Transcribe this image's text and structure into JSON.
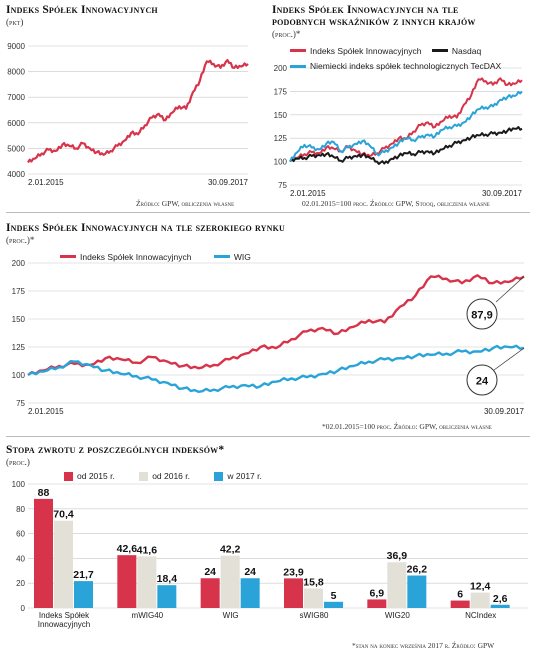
{
  "colors": {
    "isi": "#d7334a",
    "nasdaq": "#1a1a1a",
    "tecdax": "#2aa4d8",
    "wig": "#2aa4d8",
    "y2015": "#d7334a",
    "y2016": "#e3e0d8",
    "y2017": "#2aa4d8",
    "grid": "#c8c8c8"
  },
  "panel1": {
    "title": "Indeks Spółek Innowacyjnych",
    "unit": "(pkt)",
    "source": "Źródło: GPW, obliczenia własne"
  },
  "panel2": {
    "title_line1": "Indeks Spółek Innowacyjnych na tle",
    "title_line2": "podobnych wskaźników z innych krajów",
    "unit": "(proc.)*",
    "source": "02.01.2015=100 proc.  Źródło: GPW, Stooq, obliczenia własne"
  },
  "panel3": {
    "title": "Indeks Spółek Innowacyjnych  na tle szerokiego rynku",
    "unit": "(proc.)*",
    "source": "*02.01.2015=100 proc.  Źródło: GPW, obliczenia własne",
    "callout_isi": "87,9",
    "callout_wig": "24"
  },
  "panel4": {
    "title": "Stopa zwrotu z poszczególnych indeksów*",
    "unit": "(proc.)",
    "footnote": "*stan na koniec września 2017 r.  Źródło: GPW"
  },
  "chart_data": [
    {
      "type": "line",
      "title": "Indeks Spółek Innowacyjnych",
      "ylabel": "(pkt)",
      "x_start": "2.01.2015",
      "x_end": "30.09.2017",
      "ylim": [
        4000,
        9000
      ],
      "yticks": [
        4000,
        5000,
        6000,
        7000,
        8000,
        9000
      ],
      "series": [
        {
          "name": "Indeks Spółek Innowacyjnych",
          "values": [
            4450,
            4600,
            4800,
            4950,
            4900,
            5150,
            5100,
            5000,
            5200,
            5000,
            4850,
            4750,
            4900,
            5100,
            5300,
            5600,
            5550,
            5900,
            6200,
            6350,
            6100,
            6400,
            6650,
            6550,
            7200,
            7650,
            8400,
            8300,
            8150,
            8450,
            8150,
            8200,
            8300
          ]
        }
      ]
    },
    {
      "type": "line",
      "title": "Indeks Spółek Innowacyjnych na tle podobnych wskaźników z innych krajów",
      "ylabel": "(proc.)*",
      "x_start": "2.01.2015",
      "x_end": "30.09.2017",
      "ylim": [
        75,
        200
      ],
      "yticks": [
        75,
        100,
        125,
        150,
        175,
        200
      ],
      "series": [
        {
          "name": "Indeks Spółek Innowacyjnych",
          "values": [
            100,
            104,
            108,
            110,
            109,
            115,
            114,
            111,
            116,
            112,
            108,
            106,
            109,
            114,
            119,
            125,
            124,
            132,
            139,
            142,
            137,
            143,
            149,
            147,
            161,
            171,
            188,
            186,
            182,
            189,
            182,
            183,
            187
          ]
        },
        {
          "name": "Nasdaq",
          "values": [
            100,
            103,
            104,
            106,
            107,
            108,
            105,
            101,
            104,
            106,
            107,
            104,
            100,
            98,
            103,
            106,
            109,
            108,
            110,
            111,
            109,
            113,
            117,
            120,
            123,
            126,
            128,
            129,
            130,
            131,
            133,
            135,
            135
          ]
        },
        {
          "name": "Niemiecki indeks spółek technologicznych  TecDAX",
          "values": [
            100,
            110,
            118,
            115,
            113,
            119,
            121,
            111,
            115,
            119,
            122,
            117,
            108,
            110,
            115,
            120,
            125,
            123,
            126,
            129,
            127,
            134,
            137,
            138,
            142,
            149,
            156,
            158,
            159,
            166,
            169,
            170,
            175
          ]
        }
      ]
    },
    {
      "type": "line",
      "title": "Indeks Spółek Innowacyjnych  na tle szerokiego rynku",
      "ylabel": "(proc.)*",
      "x_start": "2.01.2015",
      "x_end": "30.09.2017",
      "ylim": [
        75,
        200
      ],
      "yticks": [
        75,
        100,
        125,
        150,
        175,
        200
      ],
      "annotations": [
        "87,9",
        "24"
      ],
      "series": [
        {
          "name": "Indeks Spółek Innowacyjnych",
          "values": [
            100,
            104,
            108,
            110,
            109,
            115,
            114,
            111,
            116,
            112,
            108,
            106,
            109,
            114,
            119,
            125,
            124,
            132,
            139,
            142,
            137,
            143,
            149,
            147,
            161,
            171,
            188,
            186,
            182,
            189,
            182,
            183,
            187.9
          ]
        },
        {
          "name": "WIG",
          "values": [
            100,
            103,
            107,
            112,
            109,
            104,
            101,
            99,
            96,
            93,
            88,
            85,
            87,
            89,
            91,
            90,
            94,
            97,
            98,
            101,
            104,
            108,
            112,
            114,
            115,
            117,
            118,
            119,
            121,
            121,
            124,
            125,
            124
          ]
        }
      ]
    },
    {
      "type": "bar",
      "title": "Stopa zwrotu z poszczególnych indeksów*",
      "ylabel": "(proc.)",
      "ylim": [
        0,
        100
      ],
      "yticks": [
        0,
        20,
        40,
        60,
        80,
        100
      ],
      "categories": [
        "Indeks Spółek Innowacyjnych",
        "mWIG40",
        "WIG",
        "sWIG80",
        "WIG20",
        "NCIndex"
      ],
      "series": [
        {
          "name": "od 2015 r.",
          "values": [
            88,
            42.6,
            24,
            23.9,
            6.9,
            6
          ],
          "labels": [
            "88",
            "42,6",
            "24",
            "23,9",
            "6,9",
            "6"
          ]
        },
        {
          "name": "od 2016 r.",
          "values": [
            70.4,
            41.6,
            42.2,
            15.8,
            36.9,
            12.4
          ],
          "labels": [
            "70,4",
            "41,6",
            "42,2",
            "15,8",
            "36,9",
            "12,4"
          ]
        },
        {
          "name": "w 2017 r.",
          "values": [
            21.7,
            18.4,
            24,
            5,
            26.2,
            2.6
          ],
          "labels": [
            "21,7",
            "18,4",
            "24",
            "5",
            "26,2",
            "2,6"
          ]
        }
      ]
    }
  ]
}
